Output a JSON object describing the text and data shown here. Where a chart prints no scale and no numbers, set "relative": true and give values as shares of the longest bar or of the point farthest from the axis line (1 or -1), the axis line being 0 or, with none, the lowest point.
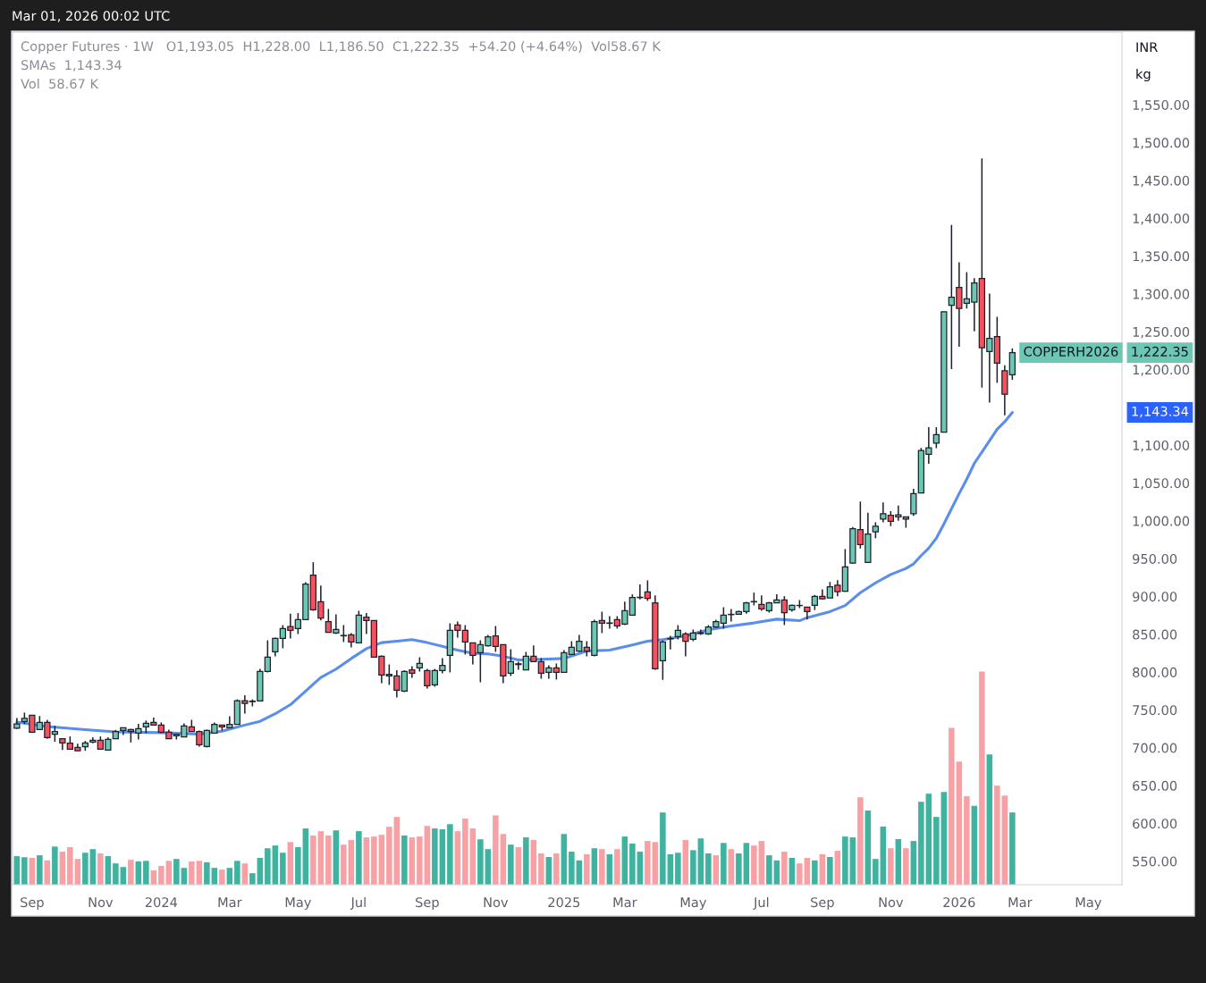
{
  "chart_data": [
    {
      "type": "candlestick",
      "x": [
        "2023-08-21",
        "2023-08-28",
        "2023-09-04",
        "2023-09-11",
        "2023-09-18",
        "2023-09-25",
        "2023-10-02",
        "2023-10-09",
        "2023-10-16",
        "2023-10-23",
        "2023-10-30",
        "2023-11-06",
        "2023-11-13",
        "2023-11-20",
        "2023-11-27",
        "2023-12-04",
        "2023-12-11",
        "2023-12-18",
        "2023-12-25",
        "2024-01-01",
        "2024-01-08",
        "2024-01-15",
        "2024-01-22",
        "2024-01-29",
        "2024-02-05",
        "2024-02-12",
        "2024-02-19",
        "2024-02-26",
        "2024-03-04",
        "2024-03-11",
        "2024-03-18",
        "2024-03-25",
        "2024-04-01",
        "2024-04-08",
        "2024-04-15",
        "2024-04-22",
        "2024-04-29",
        "2024-05-06",
        "2024-05-13",
        "2024-05-20",
        "2024-05-27",
        "2024-06-03",
        "2024-06-10",
        "2024-06-17",
        "2024-06-24",
        "2024-07-01",
        "2024-07-08",
        "2024-07-15",
        "2024-07-22",
        "2024-07-29",
        "2024-08-05",
        "2024-08-12",
        "2024-08-19",
        "2024-08-26",
        "2024-09-02",
        "2024-09-09",
        "2024-09-16",
        "2024-09-23",
        "2024-09-30",
        "2024-10-07",
        "2024-10-14",
        "2024-10-21",
        "2024-10-28",
        "2024-11-04",
        "2024-11-11",
        "2024-11-18",
        "2024-11-25",
        "2024-12-02",
        "2024-12-09",
        "2024-12-16",
        "2024-12-23",
        "2024-12-30",
        "2025-01-06",
        "2025-01-13",
        "2025-01-20",
        "2025-01-27",
        "2025-02-03",
        "2025-02-10",
        "2025-02-17",
        "2025-02-24",
        "2025-03-03",
        "2025-03-10",
        "2025-03-17",
        "2025-03-24",
        "2025-03-31",
        "2025-04-07",
        "2025-04-14",
        "2025-04-21",
        "2025-04-28",
        "2025-05-05",
        "2025-05-12",
        "2025-05-19",
        "2025-05-26",
        "2025-06-02",
        "2025-06-09",
        "2025-06-16",
        "2025-06-23",
        "2025-06-30",
        "2025-07-07",
        "2025-07-14",
        "2025-07-21",
        "2025-07-28",
        "2025-08-04",
        "2025-08-11",
        "2025-08-18",
        "2025-08-25",
        "2025-09-01",
        "2025-09-08",
        "2025-09-15",
        "2025-09-22",
        "2025-09-29",
        "2025-10-06",
        "2025-10-13",
        "2025-10-20",
        "2025-10-27",
        "2025-11-03",
        "2025-11-10",
        "2025-11-17",
        "2025-11-24",
        "2025-12-01",
        "2025-12-08",
        "2025-12-15",
        "2025-12-22",
        "2025-12-29",
        "2026-01-05",
        "2026-01-12",
        "2026-01-19",
        "2026-01-26",
        "2026-02-02",
        "2026-02-09",
        "2026-02-16",
        "2026-02-23"
      ],
      "ohlc": [
        [
          726,
          739.4,
          724.8,
          731.5
        ],
        [
          734.6,
          746.5,
          731.5,
          739
        ],
        [
          743,
          743,
          720,
          720.5
        ],
        [
          724,
          742,
          724,
          733.5
        ],
        [
          733.5,
          737,
          712,
          713.4
        ],
        [
          718,
          729,
          708,
          721.6
        ],
        [
          712,
          712,
          697,
          706.3
        ],
        [
          706,
          715,
          698,
          698
        ],
        [
          700.4,
          705.5,
          696,
          696
        ],
        [
          701.5,
          709,
          696,
          706.3
        ],
        [
          707.5,
          713.8,
          706,
          710
        ],
        [
          710,
          715,
          698,
          698
        ],
        [
          696.8,
          713.8,
          696.8,
          711
        ],
        [
          712,
          723.6,
          712,
          721.6
        ],
        [
          722.8,
          726.4,
          717,
          726.4
        ],
        [
          724,
          725,
          707,
          721.6
        ],
        [
          719.3,
          731.5,
          711,
          725.2
        ],
        [
          727.6,
          736,
          719,
          732.3
        ],
        [
          733.5,
          739.8,
          730,
          730
        ],
        [
          730,
          733.5,
          719.3,
          720.5
        ],
        [
          720.5,
          724,
          712,
          712
        ],
        [
          715.8,
          718,
          711,
          718
        ],
        [
          714.5,
          732.3,
          714.5,
          728.7
        ],
        [
          727.6,
          737,
          721.6,
          721.6
        ],
        [
          721.6,
          722.8,
          701.6,
          704
        ],
        [
          701.6,
          724,
          700.4,
          722.8
        ],
        [
          719.3,
          733.5,
          719.3,
          731
        ],
        [
          730,
          730,
          722.8,
          727.6
        ],
        [
          726.4,
          741.7,
          726.4,
          731
        ],
        [
          731,
          764,
          731,
          762.2
        ],
        [
          762.2,
          769.3,
          745.3,
          758.6
        ],
        [
          761,
          764,
          754.7,
          761.7
        ],
        [
          761.8,
          804.3,
          761.8,
          800.8
        ],
        [
          800.8,
          842.1,
          799.6,
          819.7
        ],
        [
          826.8,
          845.7,
          820.9,
          844.5
        ],
        [
          844.5,
          862.2,
          831.5,
          857.5
        ],
        [
          860.2,
          877.1,
          844.5,
          855.1
        ],
        [
          857.5,
          878,
          850.4,
          869.3
        ],
        [
          869.3,
          918.9,
          869.3,
          916.5
        ],
        [
          928.3,
          945.3,
          881.1,
          882.3
        ],
        [
          892.9,
          914.6,
          868.5,
          871.6
        ],
        [
          866.9,
          883.5,
          852.7,
          852.7
        ],
        [
          851.6,
          876.4,
          850.4,
          856.3
        ],
        [
          848.5,
          862.2,
          839.8,
          848
        ],
        [
          849.2,
          851.6,
          832.7,
          839.8
        ],
        [
          838.6,
          881.1,
          838.6,
          875.2
        ],
        [
          872.8,
          878,
          850.4,
          868.1
        ],
        [
          868.1,
          868.1,
          819.7,
          819.7
        ],
        [
          820.9,
          822.1,
          785.4,
          796.1
        ],
        [
          797.2,
          810.2,
          783.1,
          794.9
        ],
        [
          794.9,
          802.4,
          766.5,
          776
        ],
        [
          774.8,
          802.4,
          773.6,
          800.8
        ],
        [
          803.1,
          807.9,
          792.5,
          798.4
        ],
        [
          805.5,
          819.7,
          800.8,
          811.4
        ],
        [
          802,
          804.3,
          778.3,
          781.9
        ],
        [
          783.1,
          804.3,
          780.7,
          802
        ],
        [
          802,
          818.5,
          798.4,
          809
        ],
        [
          822.1,
          864.6,
          799.6,
          855.1
        ],
        [
          862.2,
          866.9,
          845.7,
          855.1
        ],
        [
          855.1,
          862.2,
          823.2,
          839.8
        ],
        [
          838.6,
          838.6,
          810.2,
          822.1
        ],
        [
          825.6,
          842.1,
          786.6,
          836.2
        ],
        [
          835,
          849.2,
          833.9,
          846.8
        ],
        [
          848,
          861,
          826.8,
          833.9
        ],
        [
          836.2,
          836.2,
          785.4,
          794.9
        ],
        [
          798.4,
          830.3,
          794.9,
          813.8
        ],
        [
          811,
          813.8,
          803.1,
          810
        ],
        [
          803.1,
          826.8,
          803.1,
          820.9
        ],
        [
          820.9,
          835.4,
          813.8,
          813.8
        ],
        [
          813.8,
          818.5,
          791.3,
          798.4
        ],
        [
          799.6,
          809,
          791.3,
          805.5
        ],
        [
          805.5,
          811.4,
          790.2,
          799.6
        ],
        [
          799.6,
          829.1,
          799.6,
          825.6
        ],
        [
          823.2,
          840.9,
          823.2,
          832.7
        ],
        [
          827.9,
          849.2,
          826.8,
          840.9
        ],
        [
          832.7,
          840.9,
          820.9,
          827.9
        ],
        [
          822.1,
          869.3,
          820.9,
          866.9
        ],
        [
          868.1,
          879.9,
          851.6,
          864.6
        ],
        [
          864.5,
          874,
          857.5,
          865
        ],
        [
          869.3,
          874,
          857.5,
          861
        ],
        [
          863.4,
          893.3,
          862.2,
          881.1
        ],
        [
          875.2,
          902.8,
          875.2,
          898.8
        ],
        [
          898.5,
          915.8,
          896,
          899
        ],
        [
          905.9,
          921.3,
          894.1,
          897.6
        ],
        [
          891.7,
          901.6,
          803.1,
          804.3
        ],
        [
          815,
          841.7,
          789.8,
          839.8
        ],
        [
          844,
          848,
          829.9,
          844.5
        ],
        [
          846.9,
          862.2,
          843.3,
          855.1
        ],
        [
          850.4,
          852.8,
          820.9,
          840.9
        ],
        [
          843.3,
          856.3,
          840.9,
          851.6
        ],
        [
          851,
          856.3,
          849.2,
          852
        ],
        [
          850.4,
          862.2,
          849.2,
          859.8
        ],
        [
          859.8,
          869.3,
          858.7,
          866.9
        ],
        [
          864.6,
          885.8,
          857.5,
          875.2
        ],
        [
          876.4,
          883.5,
          866.9,
          876
        ],
        [
          876.4,
          881.1,
          876.4,
          879.9
        ],
        [
          879.9,
          892.9,
          877.2,
          891.7
        ],
        [
          893.3,
          905.1,
          888.2,
          892.9
        ],
        [
          889.4,
          901.6,
          881.1,
          883.5
        ],
        [
          881.1,
          892.9,
          878.7,
          891.7
        ],
        [
          891.7,
          902.8,
          891.7,
          895.3
        ],
        [
          895.3,
          900.4,
          862.2,
          878.7
        ],
        [
          882.3,
          889.4,
          879.9,
          888.2
        ],
        [
          888.2,
          895.3,
          884.6,
          888
        ],
        [
          885.9,
          885.9,
          869.5,
          880
        ],
        [
          888.4,
          902,
          882.1,
          900.2
        ],
        [
          900.2,
          909.5,
          896,
          896.9
        ],
        [
          898.1,
          919.2,
          898.1,
          912.9
        ],
        [
          915,
          921.4,
          900.2,
          906.2
        ],
        [
          907,
          962.7,
          906.2,
          939.1
        ],
        [
          944.1,
          991.8,
          943.3,
          989.7
        ],
        [
          988.4,
          1025.5,
          963.5,
          968.6
        ],
        [
          945,
          1010.8,
          945,
          982.5
        ],
        [
          985.5,
          998.1,
          977,
          993
        ],
        [
          1002.3,
          1024.3,
          998.1,
          1009.5
        ],
        [
          1007.4,
          1012.9,
          993,
          999.4
        ],
        [
          1005.3,
          1020.1,
          1000.2,
          1007.8
        ],
        [
          1005.3,
          1005.3,
          990.9,
          1002.3
        ],
        [
          1009.5,
          1042.4,
          1006.6,
          1036
        ],
        [
          1036.9,
          1096.4,
          1036.9,
          1093
        ],
        [
          1088,
          1123.8,
          1075.3,
          1096.4
        ],
        [
          1102.7,
          1123.8,
          1096,
          1114.1
        ],
        [
          1117.1,
          1276.5,
          1117.1,
          1276.5
        ],
        [
          1284.9,
          1391.2,
          1200.6,
          1295.5
        ],
        [
          1308.6,
          1341.9,
          1230.1,
          1280.7
        ],
        [
          1287.5,
          1328.8,
          1280.7,
          1293.4
        ],
        [
          1289.2,
          1320.8,
          1250.4,
          1314.5
        ],
        [
          1320.4,
          1479,
          1176.1,
          1228.8
        ],
        [
          1223.8,
          1300.5,
          1156.3,
          1241.1
        ],
        [
          1243.6,
          1269.7,
          1182.4,
          1208.6
        ],
        [
          1198.5,
          1205.6,
          1139.4,
          1167.3
        ],
        [
          1193.05,
          1228,
          1186.5,
          1222.35
        ]
      ],
      "colors": [
        "#6cc7b3",
        "#6cc7b3",
        "#f5525f",
        "#6cc7b3",
        "#f5525f",
        "#6cc7b3",
        "#f5525f",
        "#f5525f",
        "#f5525f",
        "#6cc7b3",
        "#6cc7b3",
        "#f5525f",
        "#6cc7b3",
        "#6cc7b3",
        "#6cc7b3",
        "#f5525f",
        "#6cc7b3",
        "#6cc7b3",
        "#f5525f",
        "#f5525f",
        "#f5525f",
        "#6cc7b3",
        "#6cc7b3",
        "#f5525f",
        "#f5525f",
        "#6cc7b3",
        "#6cc7b3",
        "#f5525f",
        "#6cc7b3",
        "#6cc7b3",
        "#f5525f",
        "#6cc7b3",
        "#6cc7b3",
        "#6cc7b3",
        "#6cc7b3",
        "#6cc7b3",
        "#f5525f",
        "#6cc7b3",
        "#6cc7b3",
        "#f5525f",
        "#f5525f",
        "#f5525f",
        "#6cc7b3",
        "#f5525f",
        "#f5525f",
        "#6cc7b3",
        "#f5525f",
        "#f5525f",
        "#f5525f",
        "#f5525f",
        "#f5525f",
        "#6cc7b3",
        "#f5525f",
        "#6cc7b3",
        "#f5525f",
        "#6cc7b3",
        "#6cc7b3",
        "#6cc7b3",
        "#f5525f",
        "#f5525f",
        "#f5525f",
        "#6cc7b3",
        "#6cc7b3",
        "#f5525f",
        "#f5525f",
        "#6cc7b3",
        "#f5525f",
        "#6cc7b3",
        "#f5525f",
        "#f5525f",
        "#6cc7b3",
        "#f5525f",
        "#6cc7b3",
        "#6cc7b3",
        "#6cc7b3",
        "#f5525f",
        "#6cc7b3",
        "#f5525f",
        "#6cc7b3",
        "#f5525f",
        "#6cc7b3",
        "#6cc7b3",
        "#6cc7b3",
        "#f5525f",
        "#f5525f",
        "#6cc7b3",
        "#6cc7b3",
        "#6cc7b3",
        "#f5525f",
        "#6cc7b3",
        "#6cc7b3",
        "#6cc7b3",
        "#6cc7b3",
        "#6cc7b3",
        "#f5525f",
        "#6cc7b3",
        "#6cc7b3",
        "#f5525f",
        "#f5525f",
        "#6cc7b3",
        "#6cc7b3",
        "#f5525f",
        "#6cc7b3",
        "#f5525f",
        "#f5525f",
        "#6cc7b3",
        "#f5525f",
        "#6cc7b3",
        "#f5525f",
        "#6cc7b3",
        "#6cc7b3",
        "#f5525f",
        "#6cc7b3",
        "#6cc7b3",
        "#6cc7b3",
        "#f5525f",
        "#6cc7b3",
        "#f5525f",
        "#6cc7b3",
        "#6cc7b3",
        "#6cc7b3",
        "#6cc7b3",
        "#6cc7b3",
        "#6cc7b3",
        "#f5525f",
        "#6cc7b3",
        "#6cc7b3",
        "#f5525f",
        "#6cc7b3",
        "#f5525f",
        "#f5525f",
        "#6cc7b3"
      ],
      "series": [
        {
          "type": "line",
          "color": "#5b8def",
          "x": [
            "2023-08-21",
            "2023-09-18",
            "2023-10-23",
            "2023-11-20",
            "2024-01-01",
            "2024-02-05",
            "2024-02-26",
            "2024-03-18",
            "2024-04-01",
            "2024-04-15",
            "2024-04-29",
            "2024-05-13",
            "2024-05-27",
            "2024-06-10",
            "2024-06-24",
            "2024-07-08",
            "2024-07-22",
            "2024-08-05",
            "2024-08-19",
            "2024-09-02",
            "2024-09-16",
            "2024-09-30",
            "2024-10-14",
            "2024-10-28",
            "2024-11-11",
            "2024-11-25",
            "2024-12-16",
            "2025-01-06",
            "2025-01-27",
            "2025-02-17",
            "2025-03-10",
            "2025-03-24",
            "2025-04-07",
            "2025-04-28",
            "2025-05-19",
            "2025-06-09",
            "2025-06-30",
            "2025-07-21",
            "2025-08-11",
            "2025-08-18",
            "2025-09-08",
            "2025-09-22",
            "2025-10-06",
            "2025-10-20",
            "2025-11-03",
            "2025-11-17",
            "2025-11-24",
            "2025-12-01",
            "2025-12-08",
            "2025-12-15",
            "2025-12-22",
            "2025-12-29",
            "2026-01-05",
            "2026-01-12",
            "2026-01-19",
            "2026-01-26",
            "2026-02-02",
            "2026-02-09",
            "2026-02-16",
            "2026-02-23"
          ],
          "values": [
            734,
            728,
            724,
            721,
            720,
            718,
            722,
            730,
            735,
            745,
            757,
            775,
            793,
            804,
            818,
            831,
            839,
            841,
            843,
            839,
            834,
            829,
            825,
            824,
            821,
            816,
            817,
            818,
            828,
            829,
            836,
            841,
            843,
            848,
            856,
            861,
            865,
            870,
            868,
            872,
            880,
            888,
            905,
            918,
            929,
            937,
            943,
            954,
            964,
            977,
            996,
            1016,
            1036,
            1055,
            1076,
            1091,
            1106,
            1121,
            1131,
            1143.34
          ]
        }
      ],
      "xlim": [
        "2023-08-17",
        "2026-06-04"
      ],
      "xticks": [
        {
          "value": "2023-09-04",
          "label": "Sep"
        },
        {
          "value": "2023-11-06",
          "label": "Nov"
        },
        {
          "value": "2024-01-01",
          "label": "2024"
        },
        {
          "value": "2024-03-04",
          "label": "Mar"
        },
        {
          "value": "2024-05-06",
          "label": "May"
        },
        {
          "value": "2024-07-01",
          "label": "Jul"
        },
        {
          "value": "2024-09-02",
          "label": "Sep"
        },
        {
          "value": "2024-11-04",
          "label": "Nov"
        },
        {
          "value": "2025-01-06",
          "label": "2025"
        },
        {
          "value": "2025-03-03",
          "label": "Mar"
        },
        {
          "value": "2025-05-05",
          "label": "May"
        },
        {
          "value": "2025-07-07",
          "label": "Jul"
        },
        {
          "value": "2025-09-01",
          "label": "Sep"
        },
        {
          "value": "2025-11-03",
          "label": "Nov"
        },
        {
          "value": "2026-01-05",
          "label": "2026"
        },
        {
          "value": "2026-03-02",
          "label": "Mar"
        },
        {
          "value": "2026-05-04",
          "label": "May"
        }
      ],
      "ylim": [
        519,
        1646
      ],
      "yticks": [
        {
          "value": 550,
          "label": "550.00"
        },
        {
          "value": 600,
          "label": "600.00"
        },
        {
          "value": 650,
          "label": "650.00"
        },
        {
          "value": 700,
          "label": "700.00"
        },
        {
          "value": 750,
          "label": "750.00"
        },
        {
          "value": 800,
          "label": "800.00"
        },
        {
          "value": 850,
          "label": "850.00"
        },
        {
          "value": 900,
          "label": "900.00"
        },
        {
          "value": 950,
          "label": "950.00"
        },
        {
          "value": 1000,
          "label": "1,000.00"
        },
        {
          "value": 1050,
          "label": "1,050.00"
        },
        {
          "value": 1100,
          "label": "1,100.00"
        },
        {
          "value": 1200,
          "label": "1,200.00"
        },
        {
          "value": 1250,
          "label": "1,250.00"
        },
        {
          "value": 1300,
          "label": "1,300.00"
        },
        {
          "value": 1350,
          "label": "1,350.00"
        },
        {
          "value": 1400,
          "label": "1,400.00"
        },
        {
          "value": 1450,
          "label": "1,450.00"
        },
        {
          "value": 1500,
          "label": "1,500.00"
        },
        {
          "value": 1550,
          "label": "1,550.00"
        }
      ],
      "annotations": [
        "Mar 01, 2026 00:02 UTC",
        "Copper Futures · 1W   O1,193.05  H1,228.00  L1,186.50  C1,222.35  +54.20 (+4.64%)  Vol58.67 K",
        "SMAs  1,143.34",
        "Vol  58.67 K",
        "INR",
        "kg",
        "COPPERH2026",
        "1,222.35",
        "1,143.34"
      ]
    },
    {
      "type": "bar",
      "relative": true,
      "tick_labels": false,
      "x": [
        "2023-08-21",
        "2023-08-28",
        "2023-09-04",
        "2023-09-11",
        "2023-09-18",
        "2023-09-25",
        "2023-10-02",
        "2023-10-09",
        "2023-10-16",
        "2023-10-23",
        "2023-10-30",
        "2023-11-06",
        "2023-11-13",
        "2023-11-20",
        "2023-11-27",
        "2023-12-04",
        "2023-12-11",
        "2023-12-18",
        "2023-12-25",
        "2024-01-01",
        "2024-01-08",
        "2024-01-15",
        "2024-01-22",
        "2024-01-29",
        "2024-02-05",
        "2024-02-12",
        "2024-02-19",
        "2024-02-26",
        "2024-03-04",
        "2024-03-11",
        "2024-03-18",
        "2024-03-25",
        "2024-04-01",
        "2024-04-08",
        "2024-04-15",
        "2024-04-22",
        "2024-04-29",
        "2024-05-06",
        "2024-05-13",
        "2024-05-20",
        "2024-05-27",
        "2024-06-03",
        "2024-06-10",
        "2024-06-17",
        "2024-06-24",
        "2024-07-01",
        "2024-07-08",
        "2024-07-15",
        "2024-07-22",
        "2024-07-29",
        "2024-08-05",
        "2024-08-12",
        "2024-08-19",
        "2024-08-26",
        "2024-09-02",
        "2024-09-09",
        "2024-09-16",
        "2024-09-23",
        "2024-09-30",
        "2024-10-07",
        "2024-10-14",
        "2024-10-21",
        "2024-10-28",
        "2024-11-04",
        "2024-11-11",
        "2024-11-18",
        "2024-11-25",
        "2024-12-02",
        "2024-12-09",
        "2024-12-16",
        "2024-12-23",
        "2024-12-30",
        "2025-01-06",
        "2025-01-13",
        "2025-01-20",
        "2025-01-27",
        "2025-02-03",
        "2025-02-10",
        "2025-02-17",
        "2025-02-24",
        "2025-03-03",
        "2025-03-10",
        "2025-03-17",
        "2025-03-24",
        "2025-03-31",
        "2025-04-07",
        "2025-04-14",
        "2025-04-21",
        "2025-04-28",
        "2025-05-05",
        "2025-05-12",
        "2025-05-19",
        "2025-05-26",
        "2025-06-02",
        "2025-06-09",
        "2025-06-16",
        "2025-06-23",
        "2025-06-30",
        "2025-07-07",
        "2025-07-14",
        "2025-07-21",
        "2025-07-28",
        "2025-08-04",
        "2025-08-11",
        "2025-08-18",
        "2025-08-25",
        "2025-09-01",
        "2025-09-08",
        "2025-09-15",
        "2025-09-22",
        "2025-09-29",
        "2025-10-06",
        "2025-10-13",
        "2025-10-20",
        "2025-10-27",
        "2025-11-03",
        "2025-11-10",
        "2025-11-17",
        "2025-11-24",
        "2025-12-01",
        "2025-12-08",
        "2025-12-15",
        "2025-12-22",
        "2025-12-29",
        "2026-01-05",
        "2026-01-12",
        "2026-01-19",
        "2026-01-26",
        "2026-02-02",
        "2026-02-09",
        "2026-02-16",
        "2026-02-23"
      ],
      "values": [
        0.134,
        0.129,
        0.126,
        0.138,
        0.114,
        0.179,
        0.155,
        0.176,
        0.121,
        0.15,
        0.167,
        0.147,
        0.134,
        0.1,
        0.083,
        0.117,
        0.109,
        0.112,
        0.067,
        0.088,
        0.112,
        0.121,
        0.079,
        0.109,
        0.112,
        0.105,
        0.079,
        0.071,
        0.079,
        0.112,
        0.1,
        0.054,
        0.126,
        0.171,
        0.184,
        0.15,
        0.2,
        0.176,
        0.264,
        0.231,
        0.251,
        0.231,
        0.255,
        0.188,
        0.21,
        0.251,
        0.222,
        0.226,
        0.234,
        0.272,
        0.318,
        0.231,
        0.222,
        0.226,
        0.276,
        0.264,
        0.26,
        0.284,
        0.251,
        0.31,
        0.264,
        0.213,
        0.167,
        0.325,
        0.238,
        0.188,
        0.176,
        0.222,
        0.21,
        0.147,
        0.13,
        0.147,
        0.238,
        0.155,
        0.114,
        0.143,
        0.171,
        0.167,
        0.143,
        0.167,
        0.226,
        0.193,
        0.155,
        0.205,
        0.2,
        0.339,
        0.143,
        0.15,
        0.21,
        0.162,
        0.217,
        0.147,
        0.138,
        0.196,
        0.167,
        0.147,
        0.196,
        0.184,
        0.205,
        0.138,
        0.114,
        0.155,
        0.126,
        0.1,
        0.126,
        0.114,
        0.143,
        0.13,
        0.159,
        0.226,
        0.222,
        0.41,
        0.348,
        0.121,
        0.273,
        0.171,
        0.214,
        0.171,
        0.205,
        0.389,
        0.427,
        0.318,
        0.435,
        0.736,
        0.578,
        0.415,
        0.37,
        1,
        0.611,
        0.465,
        0.418,
        0.339
      ],
      "colors": [
        "#3fb39f",
        "#3fb39f",
        "#f7a1a5",
        "#3fb39f",
        "#f7a1a5",
        "#3fb39f",
        "#f7a1a5",
        "#f7a1a5",
        "#f7a1a5",
        "#3fb39f",
        "#3fb39f",
        "#f7a1a5",
        "#3fb39f",
        "#3fb39f",
        "#3fb39f",
        "#f7a1a5",
        "#3fb39f",
        "#3fb39f",
        "#f7a1a5",
        "#f7a1a5",
        "#f7a1a5",
        "#3fb39f",
        "#3fb39f",
        "#f7a1a5",
        "#f7a1a5",
        "#3fb39f",
        "#3fb39f",
        "#f7a1a5",
        "#3fb39f",
        "#3fb39f",
        "#f7a1a5",
        "#3fb39f",
        "#3fb39f",
        "#3fb39f",
        "#3fb39f",
        "#3fb39f",
        "#f7a1a5",
        "#3fb39f",
        "#3fb39f",
        "#f7a1a5",
        "#f7a1a5",
        "#f7a1a5",
        "#3fb39f",
        "#f7a1a5",
        "#f7a1a5",
        "#3fb39f",
        "#f7a1a5",
        "#f7a1a5",
        "#f7a1a5",
        "#f7a1a5",
        "#f7a1a5",
        "#3fb39f",
        "#f7a1a5",
        "#f7a1a5",
        "#f7a1a5",
        "#3fb39f",
        "#3fb39f",
        "#3fb39f",
        "#f7a1a5",
        "#f7a1a5",
        "#f7a1a5",
        "#3fb39f",
        "#3fb39f",
        "#f7a1a5",
        "#f7a1a5",
        "#3fb39f",
        "#f7a1a5",
        "#3fb39f",
        "#f7a1a5",
        "#f7a1a5",
        "#3fb39f",
        "#f7a1a5",
        "#3fb39f",
        "#3fb39f",
        "#3fb39f",
        "#f7a1a5",
        "#3fb39f",
        "#f7a1a5",
        "#3fb39f",
        "#f7a1a5",
        "#3fb39f",
        "#3fb39f",
        "#3fb39f",
        "#f7a1a5",
        "#f7a1a5",
        "#3fb39f",
        "#3fb39f",
        "#3fb39f",
        "#f7a1a5",
        "#3fb39f",
        "#3fb39f",
        "#3fb39f",
        "#f7a1a5",
        "#3fb39f",
        "#f7a1a5",
        "#3fb39f",
        "#3fb39f",
        "#f7a1a5",
        "#f7a1a5",
        "#3fb39f",
        "#3fb39f",
        "#f7a1a5",
        "#3fb39f",
        "#f7a1a5",
        "#f7a1a5",
        "#3fb39f",
        "#f7a1a5",
        "#3fb39f",
        "#f7a1a5",
        "#3fb39f",
        "#3fb39f",
        "#f7a1a5",
        "#3fb39f",
        "#3fb39f",
        "#3fb39f",
        "#f7a1a5",
        "#3fb39f",
        "#f7a1a5",
        "#3fb39f",
        "#3fb39f",
        "#3fb39f",
        "#3fb39f",
        "#3fb39f",
        "#f7a1a5",
        "#f7a1a5",
        "#f7a1a5",
        "#3fb39f",
        "#f7a1a5",
        "#3fb39f",
        "#f7a1a5",
        "#f7a1a5",
        "#3fb39f"
      ],
      "xlim": [
        "2023-08-17",
        "2026-06-04"
      ]
    }
  ]
}
